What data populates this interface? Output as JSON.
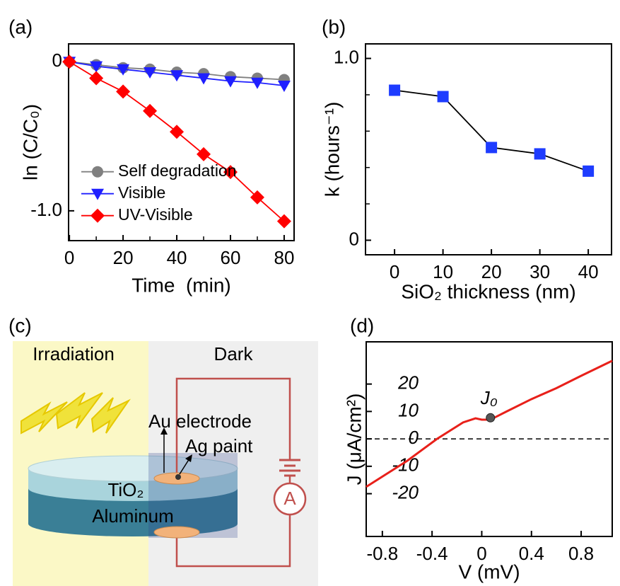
{
  "chart_data": [
    {
      "type": "line",
      "panel_label": "(a)",
      "xlabel": "Time  (min)",
      "ylabel": "ln (C/C₀)",
      "x": [
        0,
        10,
        20,
        30,
        40,
        50,
        60,
        70,
        80
      ],
      "xlim": [
        -0.3,
        83.7
      ],
      "xticks": [
        0,
        20,
        40,
        60,
        80
      ],
      "xminorticks": [
        10,
        30,
        50,
        70
      ],
      "ylim": [
        -1.2,
        0.12
      ],
      "yticks": [
        0,
        {
          "value": -1,
          "label": "-1.0"
        }
      ],
      "legend": "center left",
      "series": [
        {
          "name": "Self degradation",
          "color": "#808080",
          "marker": "circle",
          "values": [
            0,
            -0.02,
            -0.04,
            -0.05,
            -0.07,
            -0.08,
            -0.1,
            -0.11,
            -0.12
          ]
        },
        {
          "name": "Visible",
          "color": "#1f1fff",
          "marker": "triangle-down",
          "values": [
            0,
            -0.03,
            -0.05,
            -0.07,
            -0.09,
            -0.11,
            -0.13,
            -0.14,
            -0.16
          ]
        },
        {
          "name": "UV-Visible",
          "color": "#ff0000",
          "marker": "diamond",
          "values": [
            0,
            -0.11,
            -0.2,
            -0.33,
            -0.47,
            -0.62,
            -0.74,
            -0.91,
            -1.07
          ]
        }
      ]
    },
    {
      "type": "line",
      "panel_label": "(b)",
      "xlabel": "SiO₂ thickness (nm)",
      "ylabel": "k (hours⁻¹)",
      "x": [
        0,
        10,
        20,
        30,
        40
      ],
      "xlim": [
        -6,
        44.8
      ],
      "xticks": [
        0,
        10,
        20,
        30,
        40
      ],
      "ylim": [
        -0.08,
        1.08
      ],
      "yticks": [
        0,
        {
          "value": 1,
          "label": "1.0"
        }
      ],
      "yminorticks": [
        0.2,
        0.4,
        0.6,
        0.8
      ],
      "line_color": "#000000",
      "series": [
        {
          "color": "#1e3cff",
          "marker": "square",
          "values": [
            0.825,
            0.79,
            0.51,
            0.475,
            0.38
          ]
        }
      ]
    },
    {
      "type": "line",
      "panel_label": "(d)",
      "xlabel": "V (mV)",
      "ylabel": "J (μA/cm²)",
      "x": [
        -0.93,
        -0.6,
        -0.36,
        -0.15,
        -0.05,
        0,
        0.05,
        0.1,
        0.2,
        0.4,
        0.6,
        0.8,
        1.05
      ],
      "xlim": [
        -0.93,
        1.05
      ],
      "xticks": [
        -0.8,
        -0.4,
        0,
        0.4,
        0.8
      ],
      "ylim": [
        -35.6,
        35.4
      ],
      "yticks": [
        20,
        10,
        0,
        -10,
        -20
      ],
      "hline": 0,
      "series": [
        {
          "color": "#e8201a",
          "values": [
            -17.5,
            -8,
            0,
            6,
            7.5,
            7,
            7,
            7.7,
            10,
            14.5,
            18.5,
            23,
            28.5
          ]
        }
      ],
      "annotations": [
        {
          "text": "J₀",
          "x": 0.07,
          "y": 7.7
        }
      ]
    }
  ],
  "diagram": {
    "panel_label": "(c)",
    "irradiation": "Irradiation",
    "dark": "Dark",
    "au": "Au electrode",
    "ag": "Ag paint",
    "tio2": "TiO₂",
    "aluminum": "Aluminum",
    "ammeter": "A"
  }
}
